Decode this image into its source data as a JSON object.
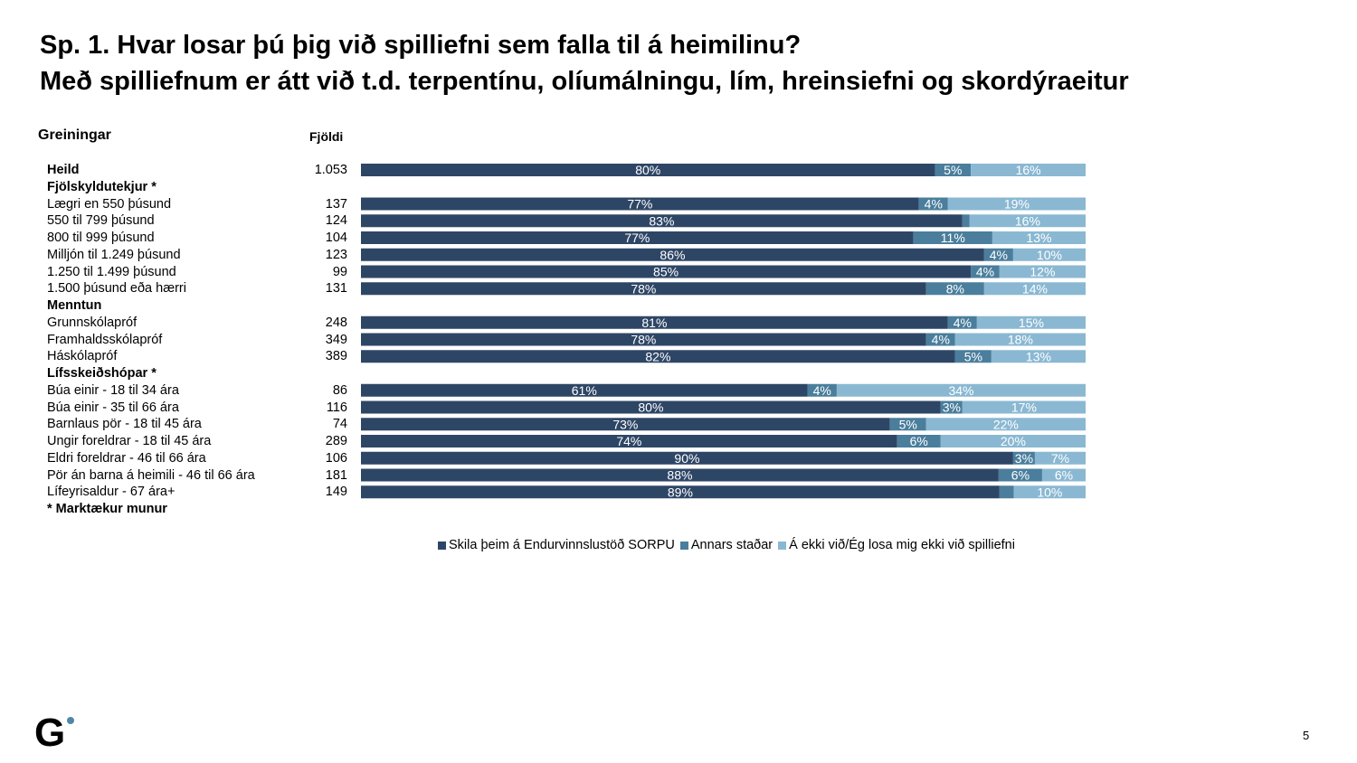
{
  "title": {
    "line1": "Sp. 1. Hvar losar þú þig við spilliefni sem falla til á heimilinu?",
    "line2": "Með spilliefnum er átt við t.d. terpentínu, olíumálningu, lím, hreinsiefni og skordýraeitur"
  },
  "header": {
    "breakdowns": "Greiningar",
    "count": "Fjöldi"
  },
  "colors": {
    "series1": "#2e4666",
    "series2": "#4a7e9c",
    "series3": "#8ab8d2",
    "label_text": "#ffffff"
  },
  "chart_data": {
    "type": "bar",
    "orientation": "horizontal",
    "stacked": true,
    "percent_stacked": true,
    "series": [
      {
        "name": "Skila þeim á Endurvinnslustöð SORPU",
        "values": [
          80,
          77,
          83,
          77,
          86,
          85,
          78,
          81,
          78,
          82,
          61,
          80,
          73,
          74,
          90,
          88,
          89
        ]
      },
      {
        "name": "Annars staðar",
        "values": [
          5,
          4,
          1,
          11,
          4,
          4,
          8,
          4,
          4,
          5,
          4,
          3,
          5,
          6,
          3,
          6,
          2
        ]
      },
      {
        "name": "Á ekki við/Ég losa mig ekki við spilliefni",
        "values": [
          16,
          19,
          16,
          13,
          10,
          12,
          14,
          15,
          18,
          13,
          34,
          17,
          22,
          20,
          7,
          6,
          10
        ]
      }
    ],
    "rows": [
      {
        "label": "Heild",
        "bold": true,
        "count": "1.053",
        "values": [
          80,
          5,
          16
        ],
        "labels": [
          "80%",
          "5%",
          "16%"
        ]
      },
      {
        "label": "Fjölskyldutekjur *",
        "bold": true,
        "header": true
      },
      {
        "label": "Lægri en 550 þúsund",
        "count": "137",
        "values": [
          77,
          4,
          19
        ],
        "labels": [
          "77%",
          "4%",
          "19%"
        ]
      },
      {
        "label": "550 til 799 þúsund",
        "count": "124",
        "values": [
          83,
          1,
          16
        ],
        "labels": [
          "83%",
          "",
          "16%"
        ]
      },
      {
        "label": "800 til 999 þúsund",
        "count": "104",
        "values": [
          77,
          11,
          13
        ],
        "labels": [
          "77%",
          "11%",
          "13%"
        ]
      },
      {
        "label": "Milljón til 1.249 þúsund",
        "count": "123",
        "values": [
          86,
          4,
          10
        ],
        "labels": [
          "86%",
          "4%",
          "10%"
        ]
      },
      {
        "label": "1.250 til 1.499 þúsund",
        "count": "99",
        "values": [
          85,
          4,
          12
        ],
        "labels": [
          "85%",
          "4%",
          "12%"
        ]
      },
      {
        "label": "1.500 þúsund eða hærri",
        "count": "131",
        "values": [
          78,
          8,
          14
        ],
        "labels": [
          "78%",
          "8%",
          "14%"
        ]
      },
      {
        "label": "Menntun",
        "bold": true,
        "header": true
      },
      {
        "label": "Grunnskólapróf",
        "count": "248",
        "values": [
          81,
          4,
          15
        ],
        "labels": [
          "81%",
          "4%",
          "15%"
        ]
      },
      {
        "label": "Framhaldsskólapróf",
        "count": "349",
        "values": [
          78,
          4,
          18
        ],
        "labels": [
          "78%",
          "4%",
          "18%"
        ]
      },
      {
        "label": "Háskólapróf",
        "count": "389",
        "values": [
          82,
          5,
          13
        ],
        "labels": [
          "82%",
          "5%",
          "13%"
        ]
      },
      {
        "label": "Lífsskeiðshópar *",
        "bold": true,
        "header": true
      },
      {
        "label": "Búa einir - 18 til 34 ára",
        "count": "86",
        "values": [
          61,
          4,
          34
        ],
        "labels": [
          "61%",
          "4%",
          "34%"
        ]
      },
      {
        "label": "Búa einir - 35 til 66 ára",
        "count": "116",
        "values": [
          80,
          3,
          17
        ],
        "labels": [
          "80%",
          "3%",
          "17%"
        ]
      },
      {
        "label": "Barnlaus pör - 18 til 45 ára",
        "count": "74",
        "values": [
          73,
          5,
          22
        ],
        "labels": [
          "73%",
          "5%",
          "22%"
        ]
      },
      {
        "label": "Ungir foreldrar - 18 til 45 ára",
        "count": "289",
        "values": [
          74,
          6,
          20
        ],
        "labels": [
          "74%",
          "6%",
          "20%"
        ]
      },
      {
        "label": "Eldri foreldrar - 46 til 66 ára",
        "count": "106",
        "values": [
          90,
          3,
          7
        ],
        "labels": [
          "90%",
          "3%",
          "7%"
        ]
      },
      {
        "label": "Pör án barna á heimili - 46 til 66 ára",
        "count": "181",
        "values": [
          88,
          6,
          6
        ],
        "labels": [
          "88%",
          "6%",
          "6%"
        ]
      },
      {
        "label": "Lífeyrisaldur - 67 ára+",
        "count": "149",
        "values": [
          89,
          2,
          10
        ],
        "labels": [
          "89%",
          "",
          "10%"
        ]
      },
      {
        "label": "* Marktækur munur",
        "bold": true,
        "header": true
      }
    ],
    "legend_position": "bottom"
  },
  "footer": {
    "logo": "G",
    "page": "5"
  }
}
